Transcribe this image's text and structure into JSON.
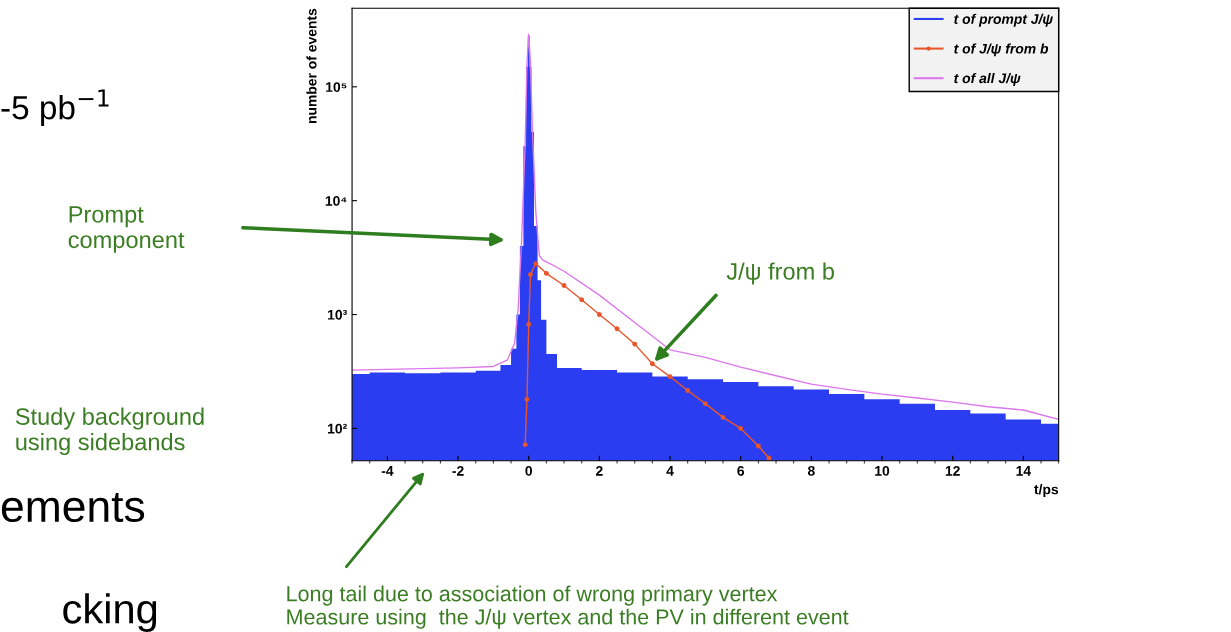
{
  "chart_data": {
    "type": "area",
    "xlabel": "t/ps",
    "ylabel": "number of events",
    "log": "y",
    "xlim": [
      -5,
      15
    ],
    "xticks": [
      -4,
      -2,
      0,
      2,
      4,
      6,
      8,
      10,
      12,
      14
    ],
    "ylim": [
      52,
      490000
    ],
    "yticks": [
      {
        "value": 100,
        "label": "10²"
      },
      {
        "value": 1000,
        "label": "10³"
      },
      {
        "value": 10000,
        "label": "10⁴"
      },
      {
        "value": 100000,
        "label": "10⁵"
      }
    ],
    "legend": "top right",
    "grid": false,
    "x": [
      -5,
      -4,
      -3,
      -2,
      -1,
      -0.6,
      -0.4,
      -0.3,
      -0.2,
      -0.1,
      -0.05,
      0,
      0.05,
      0.1,
      0.2,
      0.3,
      0.4,
      0.6,
      1,
      2,
      3,
      4,
      5,
      6,
      7,
      8,
      9,
      10,
      11,
      12,
      13,
      14,
      15
    ],
    "series": [
      {
        "name": "t of prompt J/ψ",
        "color": "#2b3df0",
        "values": [
          300,
          310,
          305,
          310,
          320,
          360,
          500,
          1000,
          4000,
          30000,
          150000,
          280000,
          150000,
          40000,
          6000,
          2000,
          900,
          450,
          340,
          325,
          310,
          285,
          270,
          255,
          235,
          220,
          200,
          180,
          165,
          145,
          135,
          120,
          110
        ]
      },
      {
        "name": "t of J/ψ from b",
        "type": "line",
        "color": "#e8562a",
        "marker": "circle",
        "x": [
          -0.1,
          -0.05,
          0,
          0.05,
          0.2,
          0.5,
          1,
          1.5,
          2,
          2.5,
          3,
          3.5,
          4,
          4.5,
          5,
          5.5,
          6,
          6.5,
          6.8
        ],
        "values": [
          72,
          180,
          820,
          2250,
          2800,
          2300,
          1800,
          1350,
          1000,
          750,
          550,
          370,
          285,
          215,
          165,
          125,
          100,
          70,
          55
        ]
      },
      {
        "name": "t of all J/ψ",
        "type": "line",
        "color": "#dd77ee",
        "values": [
          325,
          330,
          335,
          340,
          350,
          400,
          560,
          1100,
          4500,
          32000,
          160000,
          290000,
          160000,
          45000,
          8000,
          3300,
          3000,
          2800,
          2400,
          1480,
          850,
          490,
          420,
          345,
          290,
          245,
          220,
          200,
          185,
          170,
          155,
          145,
          120
        ]
      }
    ],
    "annotations": [
      "-5 pb$^{−1}$",
      "ements",
      "cking",
      "Prompt\ncomponent",
      {
        "text": "J/ψ from b",
        "x": 3.5,
        "y": 370
      },
      "Study background\nusing sidebands",
      "Long tail due to association of wrong primary vertex\nMeasure using  the J/ψ vertex and the PV in different event"
    ]
  }
}
